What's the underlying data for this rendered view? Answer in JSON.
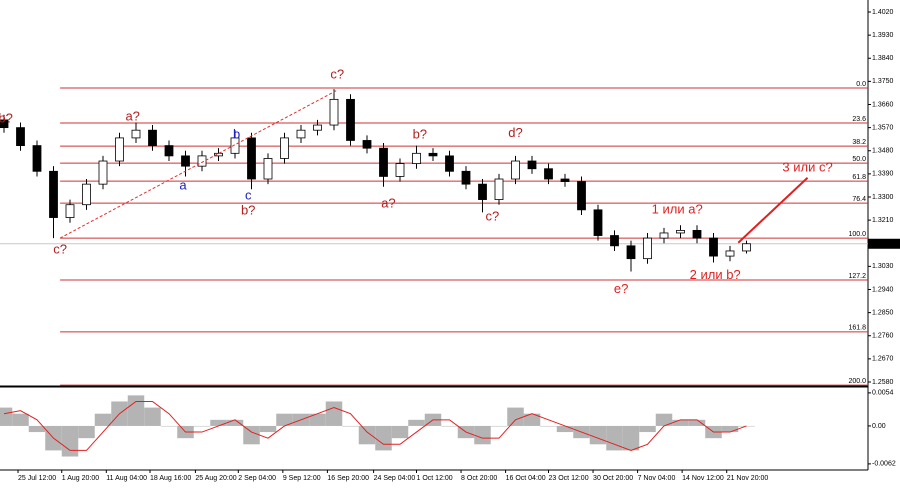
{
  "chart_data": [
    {
      "type": "candlestick",
      "open": [
        1.36,
        1.357,
        1.35,
        1.34,
        1.322,
        1.327,
        1.335,
        1.344,
        1.353,
        1.356,
        1.35,
        1.346,
        1.342,
        1.346,
        1.347,
        1.353,
        1.337,
        1.345,
        1.353,
        1.356,
        1.358,
        1.368,
        1.352,
        1.349,
        1.338,
        1.343,
        1.347,
        1.346,
        1.34,
        1.335,
        1.329,
        1.337,
        1.344,
        1.341,
        1.337,
        1.336,
        1.325,
        1.315,
        1.311,
        1.306,
        1.314,
        1.316,
        1.317,
        1.314,
        1.307,
        1.309
      ],
      "high": [
        1.362,
        1.359,
        1.352,
        1.342,
        1.329,
        1.337,
        1.346,
        1.355,
        1.359,
        1.358,
        1.352,
        1.348,
        1.348,
        1.349,
        1.356,
        1.355,
        1.347,
        1.355,
        1.358,
        1.36,
        1.372,
        1.37,
        1.354,
        1.351,
        1.345,
        1.35,
        1.349,
        1.348,
        1.342,
        1.337,
        1.339,
        1.346,
        1.346,
        1.343,
        1.339,
        1.338,
        1.327,
        1.317,
        1.313,
        1.316,
        1.318,
        1.319,
        1.319,
        1.316,
        1.311,
        1.313
      ],
      "low": [
        1.355,
        1.348,
        1.338,
        1.314,
        1.32,
        1.325,
        1.333,
        1.342,
        1.351,
        1.348,
        1.344,
        1.338,
        1.34,
        1.344,
        1.345,
        1.333,
        1.335,
        1.343,
        1.351,
        1.354,
        1.356,
        1.35,
        1.347,
        1.334,
        1.336,
        1.341,
        1.344,
        1.338,
        1.333,
        1.324,
        1.327,
        1.335,
        1.339,
        1.335,
        1.334,
        1.323,
        1.313,
        1.309,
        1.301,
        1.304,
        1.312,
        1.314,
        1.312,
        1.3045,
        1.305,
        1.308
      ],
      "close": [
        1.357,
        1.35,
        1.34,
        1.322,
        1.327,
        1.335,
        1.344,
        1.353,
        1.356,
        1.35,
        1.346,
        1.342,
        1.346,
        1.347,
        1.353,
        1.337,
        1.345,
        1.353,
        1.356,
        1.358,
        1.368,
        1.352,
        1.349,
        1.338,
        1.343,
        1.347,
        1.346,
        1.34,
        1.335,
        1.329,
        1.337,
        1.344,
        1.341,
        1.337,
        1.336,
        1.325,
        1.315,
        1.311,
        1.306,
        1.314,
        1.316,
        1.317,
        1.314,
        1.307,
        1.309,
        1.3118
      ],
      "ylim": [
        1.25683,
        1.40667
      ],
      "yticks": [
        {
          "value": 1.402,
          "label": "1.4020"
        },
        {
          "value": 1.393,
          "label": "1.3930"
        },
        {
          "value": 1.384,
          "label": "1.3840"
        },
        {
          "value": 1.375,
          "label": "1.3750"
        },
        {
          "value": 1.366,
          "label": "1.3660"
        },
        {
          "value": 1.357,
          "label": "1.3570"
        },
        {
          "value": 1.348,
          "label": "1.3480"
        },
        {
          "value": 1.339,
          "label": "1.3390"
        },
        {
          "value": 1.33,
          "label": "1.3300"
        },
        {
          "value": 1.321,
          "label": "1.3210"
        },
        {
          "value": 1.303,
          "label": "1.3030"
        },
        {
          "value": 1.294,
          "label": "1.2940"
        },
        {
          "value": 1.285,
          "label": "1.2850"
        },
        {
          "value": 1.276,
          "label": "1.2760"
        },
        {
          "value": 1.267,
          "label": "1.2670"
        },
        {
          "value": 1.258,
          "label": "1.2580"
        }
      ],
      "last_price": {
        "value": 1.3118,
        "label": "1.3118"
      },
      "xticks": [
        {
          "value": 0.85,
          "label": "25 Jul 12:00"
        },
        {
          "value": 3.5,
          "label": "1 Aug 20:00"
        },
        {
          "value": 6.2,
          "label": "11 Aug 04:00"
        },
        {
          "value": 8.85,
          "label": "18 Aug 16:00"
        },
        {
          "value": 11.6,
          "label": "25 Aug 20:00"
        },
        {
          "value": 14.2,
          "label": "2 Sep 04:00"
        },
        {
          "value": 16.9,
          "label": "9 Sep 12:00"
        },
        {
          "value": 19.6,
          "label": "16 Sep 20:00"
        },
        {
          "value": 22.4,
          "label": "24 Sep 04:00"
        },
        {
          "value": 25.0,
          "label": "1 Oct 12:00"
        },
        {
          "value": 27.7,
          "label": "8 Oct 20:00"
        },
        {
          "value": 30.4,
          "label": "16 Oct 04:00"
        },
        {
          "value": 33.0,
          "label": "23 Oct 12:00"
        },
        {
          "value": 35.7,
          "label": "30 Oct 20:00"
        },
        {
          "value": 38.4,
          "label": "7 Nov 04:00"
        },
        {
          "value": 41.1,
          "label": "14 Nov 12:00"
        },
        {
          "value": 43.8,
          "label": "21 Nov 20:00"
        }
      ],
      "fib_color": "#d03030",
      "fib_levels": [
        {
          "label": "0.0",
          "price": 1.3724
        },
        {
          "label": "23.6",
          "price": 1.3588
        },
        {
          "label": "38.2",
          "price": 1.3498
        },
        {
          "label": "50.0",
          "price": 1.3432
        },
        {
          "label": "61.8",
          "price": 1.3362
        },
        {
          "label": "76.4",
          "price": 1.3276
        },
        {
          "label": "100.0",
          "price": 1.314
        },
        {
          "label": "127.2",
          "price": 1.2977
        },
        {
          "label": "161.8",
          "price": 1.2775
        },
        {
          "label": "200.0",
          "price": 1.2568
        }
      ],
      "lines": [
        {
          "from": {
            "at": 3.4,
            "price": 1.314
          },
          "to": {
            "at": 20.2,
            "price": 1.3716
          },
          "color": "#e03030",
          "dashed": true
        },
        {
          "from": {
            "at": 44.5,
            "price": 1.3122
          },
          "to": {
            "at": 48.7,
            "price": 1.3375
          },
          "color": "#e02020",
          "dashed": false
        }
      ],
      "annotations": [
        {
          "text": "b?",
          "at": 0.1,
          "price": 1.3604,
          "color": "#b02020"
        },
        {
          "text": "c?",
          "at": 3.4,
          "price": 1.3094,
          "color": "#b02020"
        },
        {
          "text": "a?",
          "at": 7.8,
          "price": 1.3612,
          "color": "#b02020"
        },
        {
          "text": "a",
          "at": 10.85,
          "price": 1.3342,
          "color": "#2020c0"
        },
        {
          "text": "b",
          "at": 14.1,
          "price": 1.3542,
          "color": "#2020c0"
        },
        {
          "text": "c",
          "at": 14.8,
          "price": 1.3304,
          "color": "#2020c0"
        },
        {
          "text": "b?",
          "at": 14.8,
          "price": 1.3245,
          "color": "#b02020"
        },
        {
          "text": "c?",
          "at": 20.2,
          "price": 1.3775,
          "color": "#b02020"
        },
        {
          "text": "a?",
          "at": 23.3,
          "price": 1.3272,
          "color": "#b02020"
        },
        {
          "text": "b?",
          "at": 25.2,
          "price": 1.3542,
          "color": "#b02020"
        },
        {
          "text": "c?",
          "at": 29.6,
          "price": 1.3221,
          "color": "#b02020"
        },
        {
          "text": "d?",
          "at": 31.0,
          "price": 1.3546,
          "color": "#b02020"
        },
        {
          "text": "e?",
          "at": 37.4,
          "price": 1.294,
          "color": "#e02020"
        },
        {
          "text": "1 или a?",
          "at": 40.8,
          "price": 1.3249,
          "color": "#e02020"
        },
        {
          "text": "2 или b?",
          "at": 43.1,
          "price": 1.2995,
          "color": "#e02020"
        },
        {
          "text": "3 или c?",
          "at": 48.7,
          "price": 1.3412,
          "color": "#e02020"
        }
      ]
    },
    {
      "type": "oscillator",
      "histogram": [
        0.003,
        0.002,
        -0.001,
        -0.004,
        -0.005,
        -0.002,
        0.002,
        0.004,
        0.005,
        0.003,
        0.0,
        -0.002,
        0.0,
        0.001,
        0.001,
        -0.003,
        -0.001,
        0.002,
        0.002,
        0.002,
        0.004,
        0.0,
        -0.003,
        -0.004,
        -0.002,
        0.001,
        0.002,
        0.0,
        -0.002,
        -0.003,
        0.0,
        0.003,
        0.002,
        0.0,
        -0.001,
        -0.002,
        -0.003,
        -0.004,
        -0.004,
        -0.001,
        0.002,
        0.001,
        0.001,
        -0.002,
        -0.001,
        0.0
      ],
      "signal": [
        0.002,
        0.0025,
        0.001,
        -0.002,
        -0.004,
        -0.004,
        -0.001,
        0.002,
        0.004,
        0.004,
        0.002,
        -0.001,
        -0.001,
        0.0,
        0.001,
        -0.001,
        -0.002,
        0.0,
        0.001,
        0.002,
        0.003,
        0.002,
        -0.001,
        -0.003,
        -0.003,
        -0.001,
        0.001,
        0.001,
        -0.001,
        -0.002,
        -0.002,
        0.001,
        0.002,
        0.001,
        0.0,
        -0.001,
        -0.002,
        -0.003,
        -0.004,
        -0.003,
        0.0,
        0.001,
        0.001,
        -0.001,
        -0.001,
        0.0
      ],
      "histogram_color": "#b4b4b4",
      "signal_color": "#e02020",
      "ylim": [
        -0.0072,
        0.0062
      ],
      "yticks": [
        0.0054,
        {
          "value": 0,
          "label": "0.00"
        },
        -0.0062
      ]
    }
  ]
}
